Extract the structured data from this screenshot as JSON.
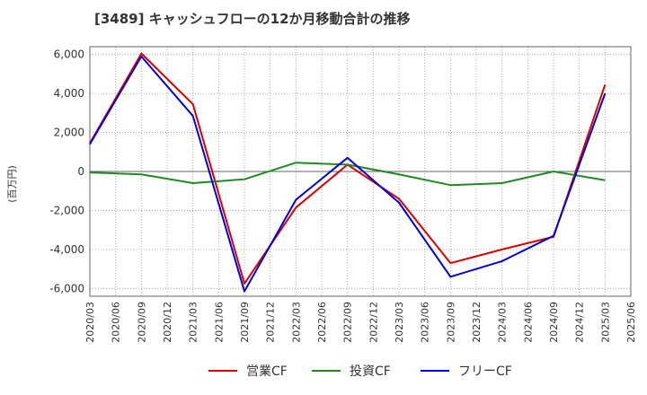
{
  "chart_data": {
    "type": "line",
    "title": "[3489]  キャッシュフローの12か月移動合計の推移",
    "ylabel": "(百万円)",
    "xlabel": "",
    "ylim": [
      -6400,
      6400
    ],
    "yticks": [
      6000,
      4000,
      2000,
      0,
      -2000,
      -4000,
      -6000
    ],
    "ytick_labels": [
      "6,000",
      "4,000",
      "2,000",
      "0",
      "-2,000",
      "-4,000",
      "-6,000"
    ],
    "categories": [
      "2020/03",
      "2020/06",
      "2020/09",
      "2020/12",
      "2021/03",
      "2021/06",
      "2021/09",
      "2021/12",
      "2022/03",
      "2022/06",
      "2022/09",
      "2022/12",
      "2023/03",
      "2023/06",
      "2023/09",
      "2023/12",
      "2024/03",
      "2024/06",
      "2024/09",
      "2024/12",
      "2025/03",
      "2025/06"
    ],
    "series": [
      {
        "name": "営業CF",
        "color": "#dd0000",
        "values": [
          1450,
          null,
          6050,
          null,
          3450,
          null,
          -5750,
          null,
          -1850,
          null,
          350,
          null,
          -1400,
          null,
          -4700,
          null,
          -4000,
          null,
          -3350,
          null,
          4450,
          null
        ]
      },
      {
        "name": "投資CF",
        "color": "#228822",
        "values": [
          -50,
          null,
          -150,
          null,
          -600,
          null,
          -400,
          null,
          450,
          null,
          350,
          null,
          -150,
          null,
          -700,
          null,
          -600,
          null,
          0,
          null,
          -450,
          null
        ]
      },
      {
        "name": "フリーCF",
        "color": "#0000dd",
        "values": [
          1400,
          null,
          5900,
          null,
          2850,
          null,
          -6150,
          null,
          -1450,
          null,
          700,
          null,
          -1600,
          null,
          -5400,
          null,
          -4600,
          null,
          -3300,
          null,
          4000,
          null
        ]
      }
    ],
    "grid": true,
    "legend": "bottom"
  }
}
